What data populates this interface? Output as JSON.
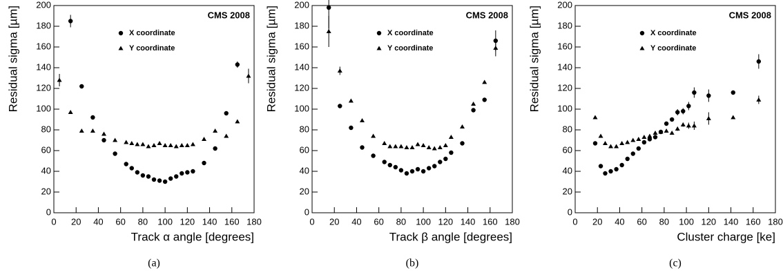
{
  "chart_data": [
    {
      "type": "scatter",
      "title": "CMS 2008",
      "caption": "(a)",
      "xlabel": "Track α angle [degrees]",
      "ylabel": "Residual sigma [µm]",
      "xlim": [
        0,
        180
      ],
      "ylim": [
        0,
        200
      ],
      "xticks": [
        0,
        20,
        40,
        60,
        80,
        100,
        120,
        140,
        160,
        180
      ],
      "yticks": [
        0,
        20,
        40,
        60,
        80,
        100,
        120,
        140,
        160,
        180,
        200
      ],
      "series": [
        {
          "name": "X coordinate",
          "marker": "circle",
          "color": "#000000",
          "x": [
            15,
            25,
            35,
            45,
            55,
            65,
            70,
            75,
            80,
            85,
            90,
            95,
            100,
            105,
            110,
            115,
            120,
            125,
            135,
            145,
            155,
            165
          ],
          "values": [
            185,
            122,
            92,
            70,
            57,
            47,
            43,
            39,
            36,
            35,
            32,
            31,
            30,
            33,
            35,
            38,
            39,
            40,
            48,
            62,
            96,
            143
          ],
          "errors": [
            6,
            1,
            1,
            1,
            1,
            1,
            1,
            1,
            1,
            1,
            1,
            1,
            1,
            1,
            1,
            1,
            1,
            1,
            1,
            1,
            1,
            3
          ]
        },
        {
          "name": "Y coordinate",
          "marker": "triangle",
          "color": "#000000",
          "x": [
            5,
            15,
            25,
            35,
            45,
            55,
            65,
            70,
            75,
            80,
            85,
            90,
            95,
            100,
            105,
            110,
            115,
            120,
            125,
            135,
            145,
            155,
            165,
            175
          ],
          "values": [
            128,
            97,
            79,
            79,
            76,
            70,
            68,
            67,
            66,
            66,
            64,
            65,
            67,
            65,
            65,
            64,
            65,
            65,
            66,
            71,
            79,
            74,
            88,
            132
          ],
          "errors": [
            6,
            1,
            1,
            1,
            1,
            1,
            1,
            1,
            1,
            1,
            1,
            1,
            1,
            1,
            1,
            1,
            1,
            1,
            1,
            1,
            1,
            1,
            1,
            7
          ]
        }
      ]
    },
    {
      "type": "scatter",
      "title": "CMS 2008",
      "caption": "(b)",
      "xlabel": "Track β angle [degrees]",
      "ylabel": "Residual sigma [µm]",
      "xlim": [
        0,
        180
      ],
      "ylim": [
        0,
        200
      ],
      "xticks": [
        0,
        20,
        40,
        60,
        80,
        100,
        120,
        140,
        160,
        180
      ],
      "yticks": [
        0,
        20,
        40,
        60,
        80,
        100,
        120,
        140,
        160,
        180,
        200
      ],
      "series": [
        {
          "name": "X coordinate",
          "marker": "circle",
          "color": "#000000",
          "x": [
            15,
            25,
            35,
            45,
            55,
            65,
            70,
            75,
            80,
            85,
            90,
            95,
            100,
            105,
            110,
            115,
            120,
            125,
            135,
            145,
            155,
            165
          ],
          "values": [
            198,
            103,
            82,
            63,
            55,
            49,
            46,
            44,
            41,
            38,
            40,
            42,
            40,
            43,
            45,
            49,
            52,
            58,
            67,
            99,
            109,
            166
          ],
          "errors": [
            20,
            1,
            1,
            1,
            1,
            1,
            1,
            1,
            1,
            1,
            1,
            1,
            1,
            1,
            1,
            1,
            1,
            1,
            1,
            1,
            1,
            10
          ]
        },
        {
          "name": "Y coordinate",
          "marker": "triangle",
          "color": "#000000",
          "x": [
            15,
            25,
            35,
            45,
            55,
            65,
            70,
            75,
            80,
            85,
            90,
            95,
            100,
            105,
            110,
            115,
            120,
            125,
            135,
            145,
            155,
            165
          ],
          "values": [
            175,
            137,
            108,
            89,
            74,
            67,
            64,
            64,
            64,
            63,
            63,
            66,
            65,
            63,
            62,
            63,
            65,
            73,
            83,
            105,
            126,
            159
          ],
          "errors": [
            15,
            4,
            1,
            1,
            1,
            1,
            1,
            1,
            1,
            1,
            1,
            1,
            1,
            1,
            1,
            1,
            1,
            1,
            1,
            1,
            1,
            8
          ]
        }
      ]
    },
    {
      "type": "scatter",
      "title": "CMS 2008",
      "caption": "(c)",
      "xlabel": "Cluster charge [ke]",
      "ylabel": "Residual sigma [µm]",
      "xlim": [
        0,
        180
      ],
      "ylim": [
        0,
        200
      ],
      "xticks": [
        0,
        20,
        40,
        60,
        80,
        100,
        120,
        140,
        160,
        180
      ],
      "yticks": [
        0,
        20,
        40,
        60,
        80,
        100,
        120,
        140,
        160,
        180,
        200
      ],
      "series": [
        {
          "name": "X coordinate",
          "marker": "circle",
          "color": "#000000",
          "x": [
            18,
            23,
            27,
            32,
            37,
            42,
            47,
            52,
            57,
            62,
            67,
            72,
            77,
            82,
            87,
            92,
            97,
            102,
            107,
            120,
            142,
            165
          ],
          "values": [
            67,
            45,
            38,
            40,
            42,
            46,
            52,
            57,
            62,
            68,
            71,
            73,
            78,
            86,
            90,
            97,
            98,
            103,
            116,
            113,
            116,
            146
          ],
          "errors": [
            1,
            1,
            1,
            1,
            1,
            1,
            1,
            1,
            1,
            1,
            1,
            1,
            1,
            1,
            1,
            3,
            3,
            4,
            5,
            6,
            1,
            7
          ]
        },
        {
          "name": "Y coordinate",
          "marker": "triangle",
          "color": "#000000",
          "x": [
            18,
            23,
            27,
            32,
            37,
            42,
            47,
            52,
            57,
            62,
            67,
            72,
            77,
            82,
            87,
            92,
            97,
            102,
            107,
            120,
            142,
            165
          ],
          "values": [
            92,
            74,
            67,
            64,
            64,
            67,
            68,
            70,
            71,
            73,
            74,
            77,
            78,
            79,
            77,
            81,
            85,
            84,
            84,
            91,
            92,
            109
          ],
          "errors": [
            1,
            1,
            1,
            1,
            1,
            1,
            1,
            1,
            1,
            1,
            1,
            1,
            1,
            1,
            1,
            2,
            2,
            3,
            4,
            6,
            1,
            4
          ]
        }
      ]
    }
  ]
}
